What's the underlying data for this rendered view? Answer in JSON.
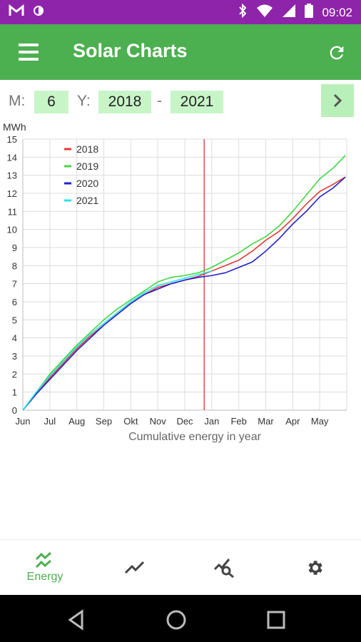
{
  "status_bar": {
    "time": "09:02",
    "left_icons": [
      "gmail-icon",
      "data-saver-icon"
    ],
    "right_icons": [
      "bluetooth-icon",
      "wifi-icon",
      "signal-icon",
      "battery-icon"
    ]
  },
  "app_bar": {
    "title": "Solar Charts",
    "menu_icon": "menu-icon",
    "refresh_icon": "refresh-icon"
  },
  "controls": {
    "month_label": "M:",
    "month_value": "6",
    "year_label": "Y:",
    "year_from": "2018",
    "separator": "-",
    "year_to": "2021",
    "next_icon": "chevron-right-icon"
  },
  "chart_data": {
    "type": "line",
    "ylabel": "MWh",
    "xlabel": "Cumulative energy in year",
    "categories": [
      "Jun",
      "Jul",
      "Aug",
      "Sep",
      "Okt",
      "Nov",
      "Dec",
      "Jan",
      "Feb",
      "Mar",
      "Apr",
      "May"
    ],
    "ylim": [
      0,
      15
    ],
    "yticks": [
      "0",
      "1",
      "2",
      "3",
      "4",
      "5",
      "6",
      "7",
      "8",
      "9",
      "10",
      "11",
      "12",
      "13",
      "14",
      "15"
    ],
    "grid": true,
    "legend": "top-left",
    "marker_month_index": 7,
    "marker_color": "#d9534f",
    "series": [
      {
        "name": "2018",
        "color": "#e53935",
        "x": [
          0,
          0.5,
          1,
          1.5,
          2,
          2.5,
          3,
          3.5,
          4,
          4.5,
          5,
          5.5,
          6,
          6.5,
          7,
          7.5,
          8,
          8.5,
          9,
          9.5,
          10,
          10.5,
          11,
          11.5,
          11.95
        ],
        "y": [
          0,
          0.9,
          1.8,
          2.6,
          3.4,
          4.1,
          4.7,
          5.3,
          5.9,
          6.4,
          6.8,
          7.0,
          7.2,
          7.4,
          7.7,
          8.0,
          8.3,
          8.8,
          9.4,
          9.9,
          10.6,
          11.4,
          12.1,
          12.5,
          12.9
        ]
      },
      {
        "name": "2019",
        "color": "#43d643",
        "x": [
          0,
          0.5,
          1,
          1.5,
          2,
          2.5,
          3,
          3.5,
          4,
          4.5,
          5,
          5.5,
          6,
          6.5,
          7,
          7.5,
          8,
          8.5,
          9,
          9.5,
          10,
          10.5,
          11,
          11.5,
          11.95
        ],
        "y": [
          0,
          1.0,
          2.0,
          2.8,
          3.6,
          4.3,
          5.0,
          5.6,
          6.1,
          6.6,
          7.1,
          7.35,
          7.45,
          7.6,
          7.9,
          8.3,
          8.7,
          9.2,
          9.6,
          10.2,
          11.0,
          11.9,
          12.8,
          13.4,
          14.1
        ]
      },
      {
        "name": "2020",
        "color": "#2020d0",
        "x": [
          0,
          0.5,
          1,
          1.5,
          2,
          2.5,
          3,
          3.5,
          4,
          4.5,
          5,
          5.5,
          6,
          6.5,
          7,
          7.5,
          8,
          8.5,
          9,
          9.5,
          10,
          10.5,
          11,
          11.5,
          11.95
        ],
        "y": [
          0,
          0.9,
          1.7,
          2.5,
          3.3,
          4.0,
          4.7,
          5.3,
          5.9,
          6.4,
          6.7,
          7.0,
          7.2,
          7.35,
          7.45,
          7.6,
          7.9,
          8.2,
          8.8,
          9.5,
          10.3,
          11.0,
          11.8,
          12.3,
          12.9
        ]
      },
      {
        "name": "2021",
        "color": "#26e6e6",
        "x": [
          0,
          0.5,
          1,
          1.5,
          2,
          2.5,
          3,
          3.5,
          4,
          4.5,
          5,
          5.5,
          6,
          6.5,
          7
        ],
        "y": [
          0,
          1.0,
          1.9,
          2.7,
          3.5,
          4.2,
          4.8,
          5.4,
          6.0,
          6.5,
          6.9,
          7.1,
          7.3,
          7.5,
          7.7
        ]
      }
    ]
  },
  "bottom_nav": {
    "items": [
      {
        "label": "Energy",
        "icon": "energy-trend-icon",
        "active": true
      },
      {
        "label": "",
        "icon": "line-chart-icon",
        "active": false
      },
      {
        "label": "",
        "icon": "chart-search-icon",
        "active": false
      },
      {
        "label": "",
        "icon": "settings-gear-icon",
        "active": false
      }
    ]
  },
  "system_nav": {
    "icons": [
      "back-icon",
      "home-icon",
      "recents-icon"
    ]
  },
  "colors": {
    "status_bar": "#8e24aa",
    "app_bar": "#4caf50",
    "field_bg": "#c8f5c8",
    "accent": "#4caf50"
  }
}
